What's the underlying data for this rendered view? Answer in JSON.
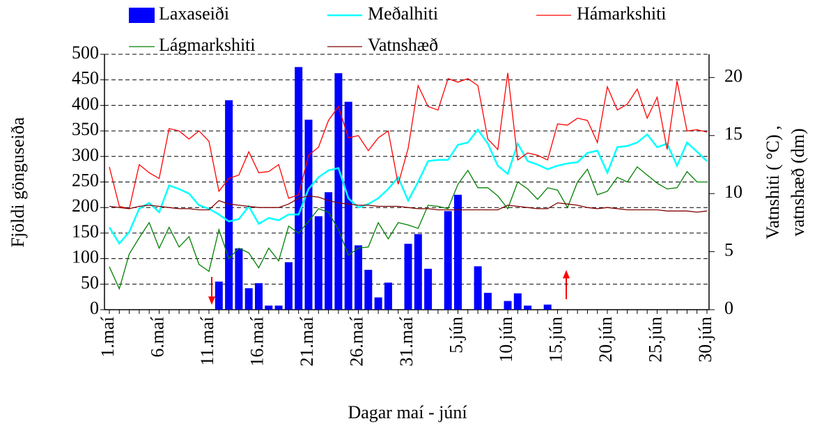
{
  "chart_data": {
    "type": "combo",
    "x_label": "Dagar maí - júní",
    "y_label": "Fjöldi gönguseiða",
    "y2_label": [
      "Vatnshiti ( °C) ,",
      "vatnshæð (dm)"
    ],
    "categories": [
      "1.maí",
      null,
      null,
      null,
      null,
      "6.maí",
      null,
      null,
      null,
      null,
      "11.maí",
      null,
      null,
      null,
      null,
      "16.maí",
      null,
      null,
      null,
      null,
      "21.maí",
      null,
      null,
      null,
      null,
      "26.maí",
      null,
      null,
      null,
      null,
      "31.maí",
      null,
      null,
      null,
      null,
      "5.jún",
      null,
      null,
      null,
      null,
      "10.jún",
      null,
      null,
      null,
      null,
      "15.jún",
      null,
      null,
      null,
      null,
      "20.jún",
      null,
      null,
      null,
      null,
      "25.jún",
      null,
      null,
      null,
      null,
      "30.jún"
    ],
    "ylim": [
      0,
      500
    ],
    "yticks": [
      0,
      50,
      100,
      150,
      200,
      250,
      300,
      350,
      400,
      450,
      500
    ],
    "y2lim": [
      0,
      22
    ],
    "y2ticks": [
      0,
      5,
      10,
      15,
      20
    ],
    "grid": true,
    "series": [
      {
        "name": "Laxaseiði",
        "type": "bar",
        "color": "#0000ff",
        "values": [
          null,
          null,
          null,
          null,
          null,
          null,
          null,
          null,
          null,
          null,
          null,
          55,
          410,
          120,
          42,
          52,
          8,
          8,
          93,
          475,
          372,
          183,
          230,
          463,
          407,
          126,
          78,
          24,
          53,
          0,
          129,
          148,
          80,
          0,
          193,
          225,
          0,
          85,
          33,
          0,
          17,
          32,
          8,
          0,
          10,
          0,
          0,
          null,
          null,
          null,
          null,
          null,
          null,
          null,
          null,
          null,
          null,
          null,
          null,
          null,
          null
        ]
      },
      {
        "name": "Meðalhiti",
        "type": "line",
        "axis": "y2",
        "color": "#00ffff",
        "values": [
          7.1,
          5.7,
          6.7,
          8.7,
          9.2,
          8.4,
          10.7,
          10.4,
          10.0,
          9.0,
          8.7,
          8.2,
          7.6,
          7.8,
          8.9,
          7.4,
          7.9,
          7.7,
          8.2,
          8.2,
          10.4,
          11.4,
          12.0,
          12.2,
          9.6,
          8.8,
          9.1,
          9.6,
          10.4,
          11.4,
          9.4,
          11.0,
          12.8,
          12.9,
          12.9,
          14.2,
          14.4,
          15.5,
          14.3,
          12.4,
          11.7,
          14.3,
          12.8,
          12.5,
          12.1,
          12.4,
          12.6,
          12.7,
          13.5,
          13.7,
          11.8,
          14.0,
          14.1,
          14.4,
          15.1,
          14.0,
          14.3,
          12.4,
          14.4,
          13.6,
          12.8
        ]
      },
      {
        "name": "Hámarkshiti",
        "type": "line",
        "axis": "y2",
        "color": "#ff0000",
        "values": [
          12.3,
          8.9,
          8.7,
          12.5,
          11.8,
          11.3,
          15.6,
          15.4,
          14.7,
          15.4,
          14.5,
          10.2,
          11.3,
          11.6,
          13.6,
          11.8,
          11.9,
          12.5,
          9.6,
          9.9,
          13.3,
          14.0,
          16.3,
          17.5,
          14.8,
          15.0,
          13.7,
          14.8,
          15.4,
          10.8,
          13.9,
          19.3,
          17.5,
          17.2,
          19.9,
          19.6,
          19.9,
          19.3,
          14.7,
          13.8,
          20.4,
          12.9,
          13.5,
          13.3,
          12.9,
          16.0,
          15.9,
          16.5,
          16.3,
          14.4,
          19.2,
          17.2,
          17.7,
          19.0,
          16.5,
          18.3,
          13.8,
          19.7,
          15.4,
          15.5,
          15.3
        ]
      },
      {
        "name": "Lágmarkshiti",
        "type": "line",
        "axis": "y2",
        "color": "#008000",
        "values": [
          3.7,
          1.8,
          4.8,
          6.2,
          7.5,
          5.3,
          7.1,
          5.4,
          6.3,
          3.9,
          3.3,
          6.9,
          4.4,
          5.3,
          4.9,
          3.6,
          5.3,
          4.2,
          7.2,
          6.6,
          7.6,
          8.7,
          8.4,
          6.9,
          4.7,
          5.3,
          5.4,
          7.5,
          6.1,
          7.5,
          7.3,
          7.0,
          9.0,
          8.9,
          8.7,
          10.8,
          12.0,
          10.5,
          10.5,
          9.8,
          8.7,
          11.0,
          10.4,
          9.5,
          10.5,
          10.3,
          8.8,
          11.0,
          12.1,
          9.9,
          10.2,
          11.4,
          11.0,
          12.3,
          11.6,
          10.9,
          10.4,
          10.5,
          11.9,
          11.0,
          11.0
        ]
      },
      {
        "name": "Vatnshæð",
        "type": "line",
        "axis": "y2",
        "color": "#800000",
        "values": [
          8.9,
          8.8,
          8.7,
          8.9,
          9.0,
          8.9,
          8.8,
          8.7,
          8.7,
          8.6,
          8.6,
          9.4,
          9.1,
          9.0,
          8.9,
          8.8,
          8.8,
          8.8,
          9.1,
          9.6,
          9.8,
          9.7,
          9.4,
          9.2,
          9.1,
          9.0,
          9.0,
          8.9,
          8.9,
          8.9,
          8.8,
          8.7,
          8.7,
          8.6,
          8.6,
          8.6,
          8.6,
          8.6,
          8.6,
          8.6,
          9.0,
          8.9,
          8.8,
          8.7,
          8.7,
          9.2,
          9.1,
          9.0,
          8.8,
          8.7,
          8.8,
          8.7,
          8.6,
          8.6,
          8.6,
          8.6,
          8.5,
          8.5,
          8.5,
          8.4,
          8.5
        ]
      }
    ]
  }
}
